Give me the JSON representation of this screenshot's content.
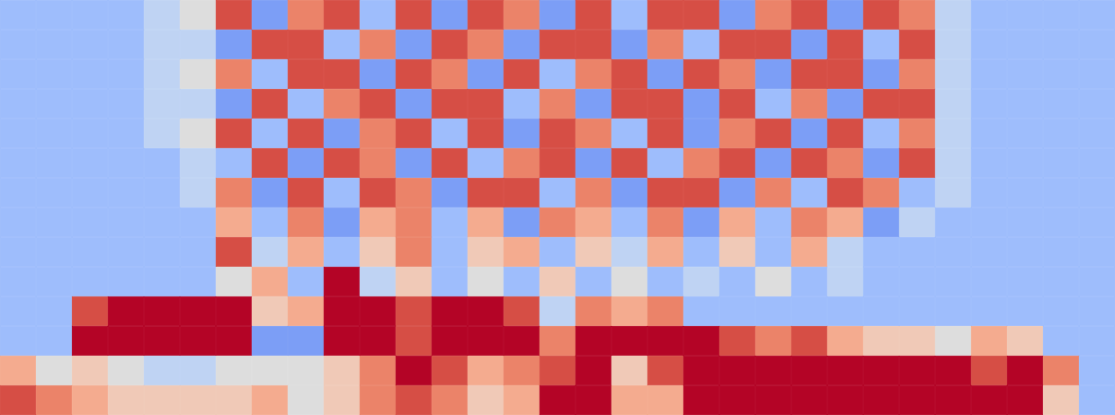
{
  "chart_data": {
    "type": "heatmap",
    "tick_labels": false,
    "zlim": [
      0,
      10
    ],
    "cells": [
      [
        3,
        3,
        3,
        3,
        4,
        5,
        9,
        2,
        8,
        9,
        3,
        9,
        2,
        9,
        8,
        2,
        9,
        3,
        9,
        9,
        2,
        8,
        9,
        2,
        9,
        8,
        4,
        3,
        3,
        3,
        3
      ],
      [
        3,
        3,
        3,
        3,
        4,
        4,
        2,
        9,
        9,
        3,
        8,
        2,
        9,
        8,
        2,
        9,
        9,
        2,
        8,
        3,
        9,
        9,
        2,
        9,
        3,
        9,
        4,
        3,
        3,
        3,
        3
      ],
      [
        3,
        3,
        3,
        3,
        4,
        5,
        8,
        3,
        9,
        9,
        2,
        9,
        8,
        2,
        9,
        3,
        8,
        9,
        2,
        9,
        8,
        2,
        9,
        9,
        2,
        8,
        4,
        3,
        3,
        3,
        3
      ],
      [
        3,
        3,
        3,
        3,
        4,
        4,
        2,
        9,
        3,
        8,
        9,
        2,
        9,
        9,
        3,
        8,
        2,
        9,
        9,
        2,
        9,
        3,
        8,
        2,
        9,
        9,
        4,
        3,
        3,
        3,
        3
      ],
      [
        3,
        3,
        3,
        3,
        4,
        5,
        9,
        3,
        9,
        2,
        8,
        9,
        3,
        9,
        2,
        9,
        8,
        3,
        9,
        2,
        8,
        9,
        2,
        9,
        3,
        8,
        4,
        3,
        3,
        3,
        3
      ],
      [
        3,
        3,
        3,
        3,
        3,
        4,
        3,
        9,
        2,
        9,
        8,
        2,
        9,
        3,
        8,
        9,
        2,
        9,
        3,
        8,
        9,
        2,
        9,
        8,
        2,
        9,
        4,
        3,
        3,
        3,
        3
      ],
      [
        3,
        3,
        3,
        3,
        3,
        4,
        8,
        2,
        9,
        3,
        9,
        8,
        2,
        9,
        9,
        3,
        8,
        2,
        9,
        9,
        2,
        8,
        3,
        9,
        8,
        3,
        4,
        3,
        3,
        3,
        3
      ],
      [
        3,
        3,
        3,
        3,
        3,
        3,
        7,
        3,
        8,
        2,
        7,
        8,
        3,
        7,
        2,
        8,
        7,
        3,
        8,
        2,
        7,
        3,
        8,
        7,
        2,
        4,
        3,
        3,
        3,
        3,
        3
      ],
      [
        3,
        3,
        3,
        3,
        3,
        3,
        9,
        4,
        7,
        3,
        6,
        8,
        3,
        6,
        7,
        3,
        6,
        4,
        7,
        3,
        6,
        3,
        7,
        4,
        3,
        3,
        3,
        3,
        3,
        3,
        3
      ],
      [
        3,
        3,
        3,
        3,
        3,
        3,
        5,
        7,
        3,
        10,
        4,
        6,
        3,
        5,
        3,
        6,
        3,
        5,
        3,
        4,
        3,
        5,
        3,
        4,
        3,
        3,
        3,
        3,
        3,
        3,
        3
      ],
      [
        3,
        3,
        9,
        10,
        10,
        10,
        10,
        6,
        7,
        10,
        10,
        9,
        10,
        10,
        9,
        4,
        8,
        7,
        8,
        3,
        3,
        3,
        3,
        3,
        3,
        3,
        3,
        3,
        3,
        3,
        3
      ],
      [
        3,
        3,
        10,
        10,
        10,
        10,
        10,
        2,
        2,
        10,
        10,
        9,
        10,
        10,
        10,
        8,
        10,
        10,
        10,
        10,
        9,
        8,
        9,
        7,
        6,
        6,
        5,
        7,
        6,
        3,
        3
      ],
      [
        7,
        5,
        6,
        5,
        4,
        4,
        5,
        5,
        5,
        6,
        8,
        10,
        9,
        7,
        8,
        9,
        10,
        6,
        9,
        10,
        10,
        10,
        10,
        10,
        10,
        10,
        10,
        9,
        10,
        8,
        3
      ],
      [
        9,
        8,
        7,
        6,
        6,
        6,
        6,
        7,
        5,
        6,
        8,
        9,
        8,
        6,
        7,
        10,
        10,
        7,
        7,
        10,
        10,
        10,
        10,
        10,
        10,
        10,
        10,
        10,
        10,
        6,
        3
      ]
    ]
  }
}
